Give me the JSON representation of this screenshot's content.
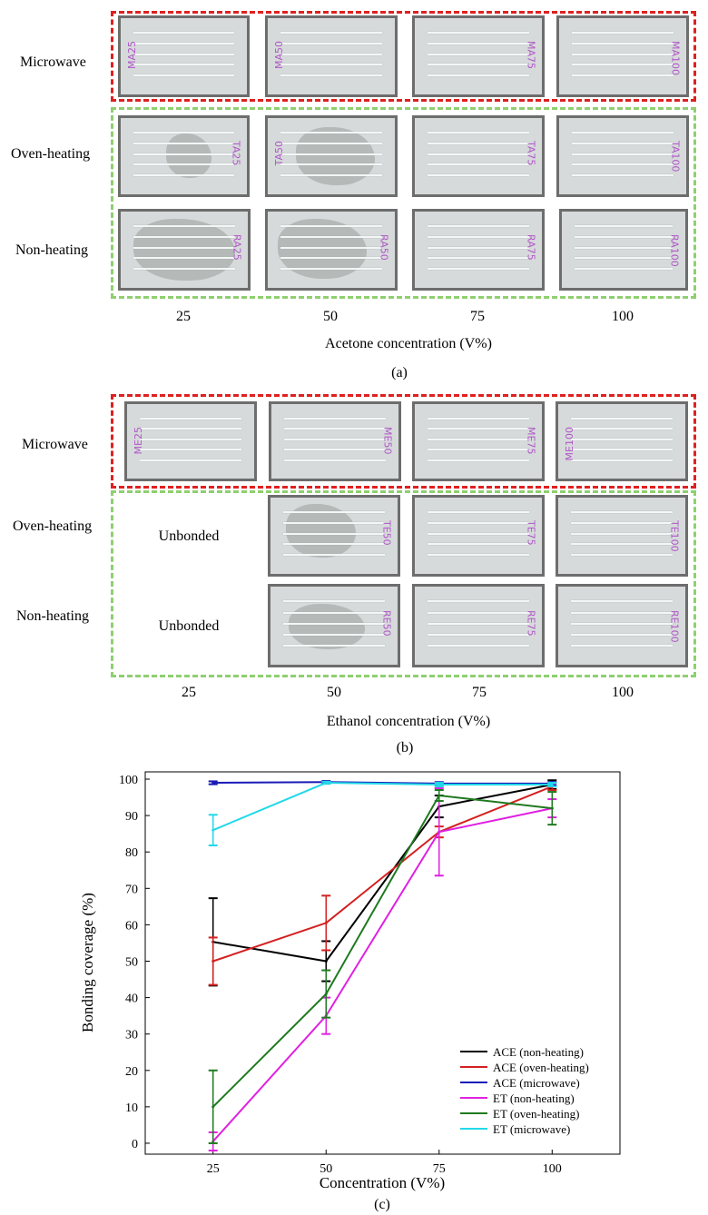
{
  "panel_a": {
    "caption": "(a)",
    "axis_title": "Acetone concentration (V%)",
    "rows": [
      "Microwave",
      "Oven-heating",
      "Non-heating"
    ],
    "columns": [
      "25",
      "50",
      "75",
      "100"
    ],
    "chip_labels": {
      "microwave": [
        "MA25",
        "MA50",
        "MA75",
        "MA100"
      ],
      "oven": [
        "TA25",
        "TA50",
        "TA75",
        "TA100"
      ],
      "non": [
        "RA25",
        "RA50",
        "RA75",
        "RA100"
      ]
    }
  },
  "panel_b": {
    "caption": "(b)",
    "axis_title": "Ethanol concentration (V%)",
    "rows": [
      "Microwave",
      "Oven-heating",
      "Non-heating"
    ],
    "columns": [
      "25",
      "50",
      "75",
      "100"
    ],
    "unbonded_label": "Unbonded",
    "chip_labels": {
      "microwave": [
        "ME25",
        "ME50",
        "ME75",
        "ME100"
      ],
      "oven": [
        "TE50",
        "TE75",
        "TE100"
      ],
      "non": [
        "RE50",
        "RE75",
        "RE100"
      ]
    }
  },
  "panel_c": {
    "caption": "(c)"
  },
  "chart_data": {
    "type": "line",
    "title": "",
    "xlabel": "Concentration (V%)",
    "ylabel": "Bonding coverage (%)",
    "x": [
      25,
      50,
      75,
      100
    ],
    "xlim": [
      10,
      115
    ],
    "ylim": [
      -3,
      102
    ],
    "xticks": [
      "25",
      "50",
      "75",
      "100"
    ],
    "yticks": [
      "0",
      "10",
      "20",
      "30",
      "40",
      "50",
      "60",
      "70",
      "80",
      "90",
      "100"
    ],
    "legend_position": "bottom-right",
    "series": [
      {
        "name": "ACE (non-heating)",
        "color": "#000000",
        "values": [
          55.3,
          50.0,
          92.5,
          98.5
        ],
        "errors": [
          12.0,
          5.5,
          3.0,
          1.2
        ]
      },
      {
        "name": "ACE (oven-heating)",
        "color": "#d42020",
        "values": [
          50.0,
          60.5,
          85.5,
          98.0
        ],
        "errors": [
          6.5,
          7.5,
          1.5,
          1.0
        ]
      },
      {
        "name": "ACE (microwave)",
        "color": "#1a1ab8",
        "values": [
          99.0,
          99.2,
          98.8,
          98.8
        ],
        "errors": [
          0.4,
          0.3,
          0.4,
          0.4
        ]
      },
      {
        "name": "ET (non-heating)",
        "color": "#e020e0",
        "values": [
          0.5,
          35.0,
          85.5,
          92.0
        ],
        "errors": [
          2.5,
          5.0,
          12.0,
          2.5
        ]
      },
      {
        "name": "ET (oven-heating)",
        "color": "#1f7a1f",
        "values": [
          10.0,
          41.0,
          95.5,
          92.0
        ],
        "errors": [
          10.0,
          6.5,
          1.5,
          4.5
        ]
      },
      {
        "name": "ET (microwave)",
        "color": "#22d8e8",
        "values": [
          86.0,
          99.0,
          98.5,
          98.5
        ],
        "errors": [
          4.2,
          0.3,
          0.5,
          0.5
        ]
      }
    ]
  }
}
